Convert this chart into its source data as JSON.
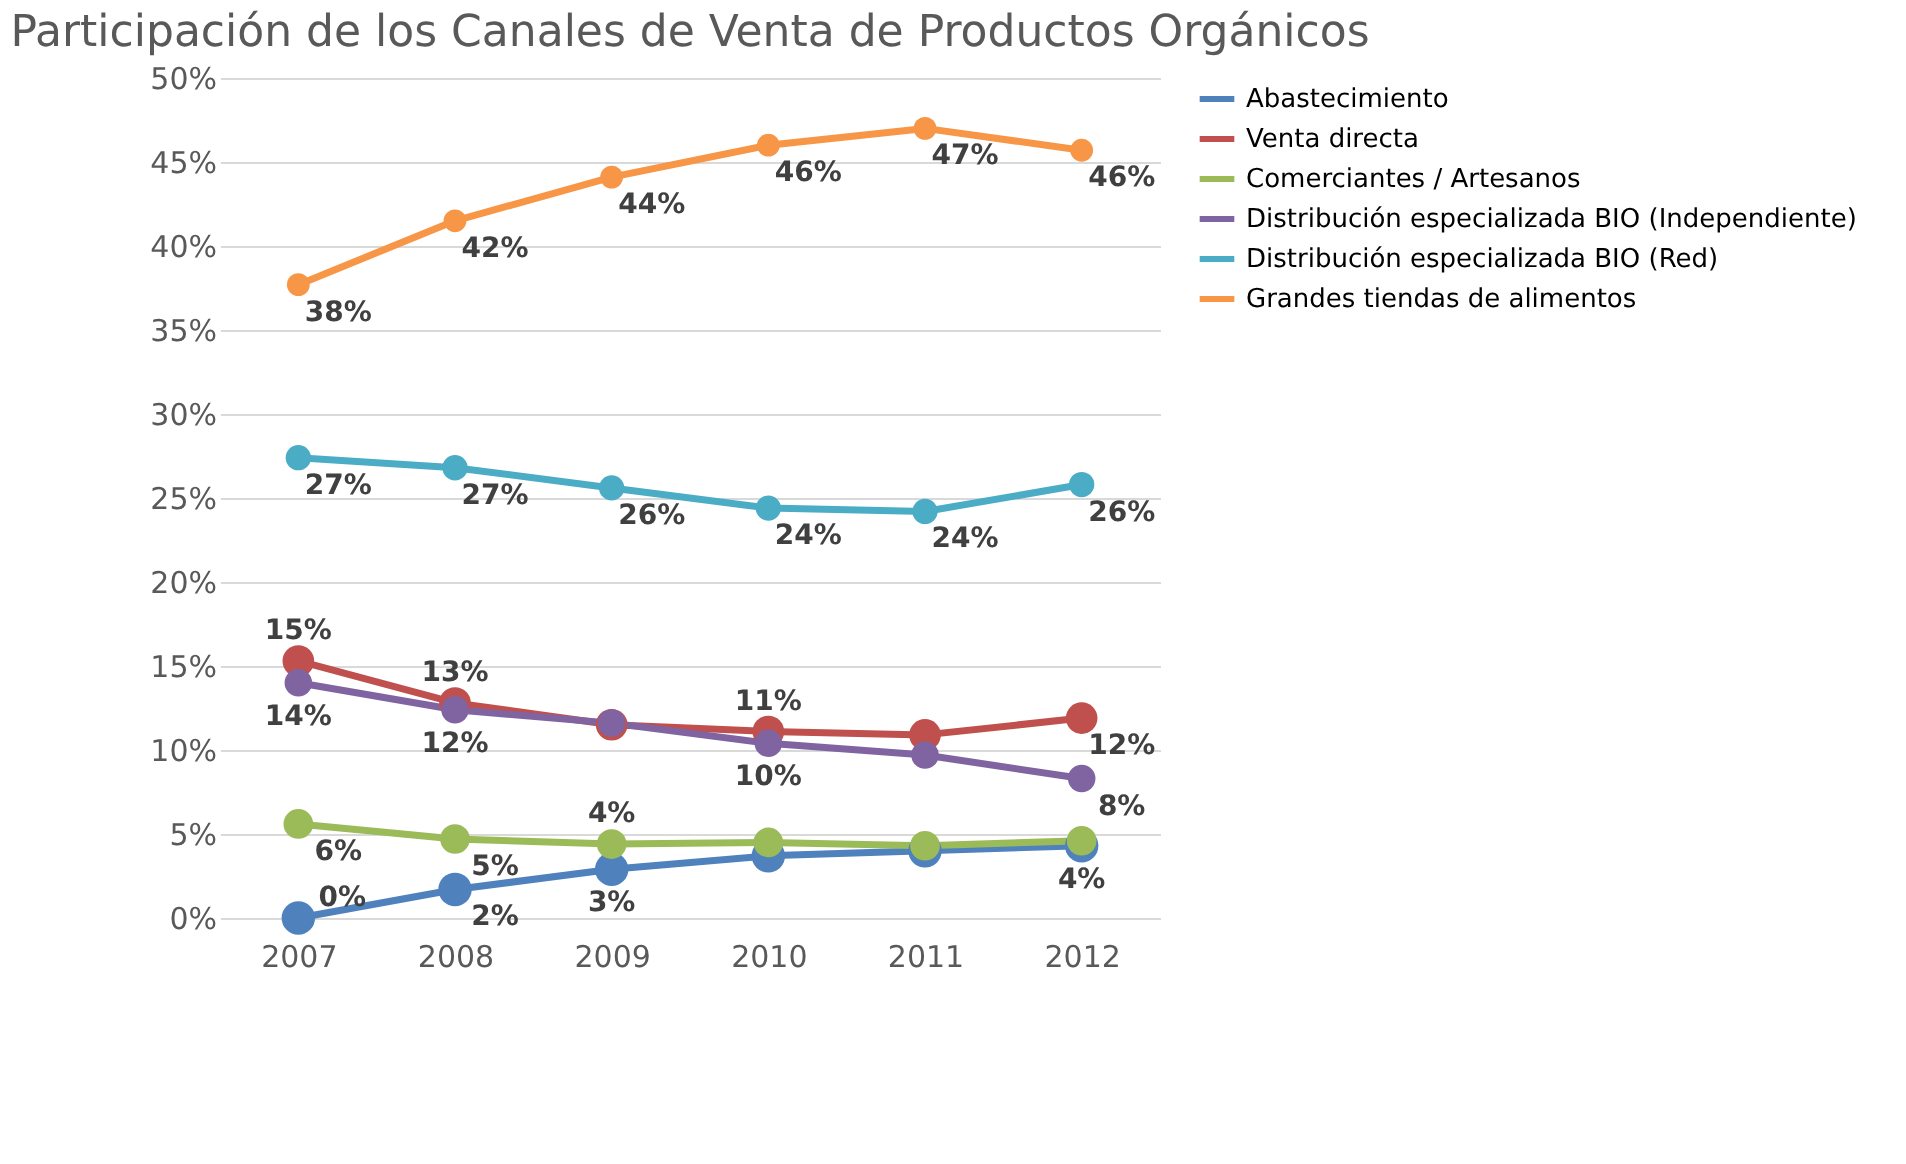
{
  "chart_data": {
    "type": "line",
    "title": "Participación de los Canales de Venta de Productos Orgánicos",
    "categories": [
      "2007",
      "2008",
      "2009",
      "2010",
      "2011",
      "2012"
    ],
    "ylim": [
      0,
      50
    ],
    "yticks": [
      {
        "value": 0,
        "label": "0%"
      },
      {
        "value": 5,
        "label": "5%"
      },
      {
        "value": 10,
        "label": "10%"
      },
      {
        "value": 15,
        "label": "15%"
      },
      {
        "value": 20,
        "label": "20%"
      },
      {
        "value": 25,
        "label": "25%"
      },
      {
        "value": 30,
        "label": "30%"
      },
      {
        "value": 35,
        "label": "35%"
      },
      {
        "value": 40,
        "label": "40%"
      },
      {
        "value": 45,
        "label": "45%"
      },
      {
        "value": 50,
        "label": "50%"
      }
    ],
    "grid": "y",
    "legend": "right",
    "marker": "circle",
    "line_style": "solid",
    "series": [
      {
        "name": "Abastecimiento",
        "color": "#4f81bd",
        "values": [
          0,
          1.7,
          2.9,
          3.7,
          4.0,
          4.3
        ],
        "value_labels": [
          "0%",
          "2%",
          "3%",
          null,
          null,
          "4%"
        ]
      },
      {
        "name": "Venta directa",
        "color": "#c0504d",
        "values": [
          15.3,
          12.8,
          11.5,
          11.1,
          10.9,
          11.9
        ],
        "value_labels": [
          "15%",
          "13%",
          null,
          "11%",
          null,
          "12%"
        ]
      },
      {
        "name": "Comerciantes / Artesanos",
        "color": "#9bbb59",
        "values": [
          5.6,
          4.7,
          4.4,
          4.5,
          4.3,
          4.6
        ],
        "value_labels": [
          "6%",
          "5%",
          "4%",
          null,
          null,
          null
        ]
      },
      {
        "name": "Distribución especializada BIO (Independiente)",
        "color": "#8064a2",
        "values": [
          14.0,
          12.4,
          11.6,
          10.4,
          9.7,
          8.3
        ],
        "value_labels": [
          "14%",
          "12%",
          null,
          "10%",
          null,
          "8%"
        ]
      },
      {
        "name": "Distribución especializada BIO (Red)",
        "color": "#4bacc6",
        "values": [
          27.4,
          26.8,
          25.6,
          24.4,
          24.2,
          25.8
        ],
        "value_labels": [
          "27%",
          "27%",
          "26%",
          "24%",
          "24%",
          "26%"
        ]
      },
      {
        "name": "Grandes tiendas de alimentos",
        "color": "#f79646",
        "values": [
          37.7,
          41.5,
          44.1,
          46.0,
          47.0,
          45.7
        ],
        "value_labels": [
          "38%",
          "42%",
          "44%",
          "46%",
          "47%",
          "46%"
        ]
      }
    ]
  }
}
